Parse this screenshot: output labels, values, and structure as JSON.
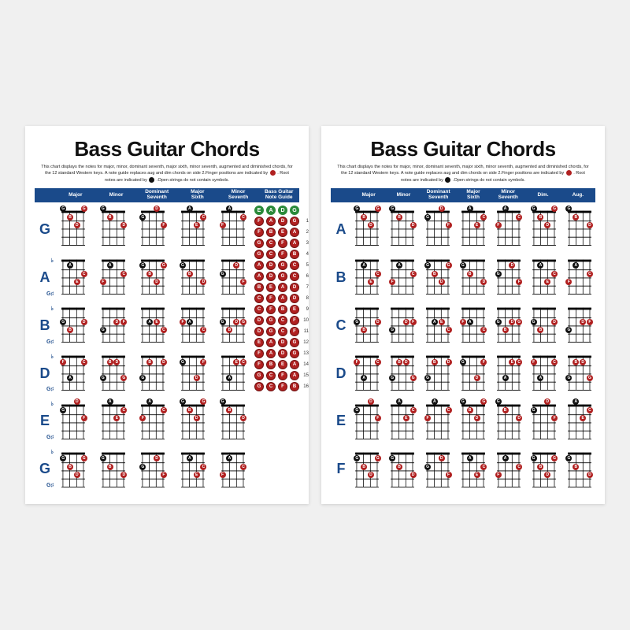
{
  "title": "Bass Guitar Chords",
  "subtitle_prefix": "This chart displays the notes for major, minor, dominant seventh, major sixth, minor seventh, augmented and diminished chords, for the 12 standard Western keys. A note guide replaces aug and dim chords on side 2.Finger positions are indicated by ",
  "subtitle_mid": " . Root notes are indicated by ",
  "subtitle_suffix": " .Open strings do not contain symbols.",
  "colors": {
    "header_bg": "#1a4a8a",
    "label": "#1a4a8a",
    "finger": "#b02020",
    "root": "#111111",
    "open": "#2a8a3a",
    "grid": "#000000"
  },
  "poster_left": {
    "columns": [
      "Major",
      "Minor",
      "Dominant\nSeventh",
      "Major\nSixth",
      "Minor\nSeventh",
      "Bass Guitar\nNote Guide"
    ],
    "rows": [
      {
        "main": "G",
        "flat": "",
        "sharp": ""
      },
      {
        "main": "A",
        "flat": "♭",
        "sharp": "G♯"
      },
      {
        "main": "B",
        "flat": "♭",
        "sharp": "G♯"
      },
      {
        "main": "D",
        "flat": "♭",
        "sharp": "G♯"
      },
      {
        "main": "E",
        "flat": "♭",
        "sharp": "G♯"
      },
      {
        "main": "G",
        "flat": "♭",
        "sharp": "G♯"
      }
    ],
    "note_guide": true
  },
  "poster_right": {
    "columns": [
      "Major",
      "Minor",
      "Dominant\nSeventh",
      "Major\nSixth",
      "Minor\nSeventh",
      "Dim.",
      "Aug."
    ],
    "rows": [
      {
        "main": "A",
        "flat": "",
        "sharp": ""
      },
      {
        "main": "B",
        "flat": "",
        "sharp": ""
      },
      {
        "main": "C",
        "flat": "",
        "sharp": ""
      },
      {
        "main": "D",
        "flat": "",
        "sharp": ""
      },
      {
        "main": "E",
        "flat": "",
        "sharp": ""
      },
      {
        "main": "F",
        "flat": "",
        "sharp": ""
      }
    ],
    "note_guide": false
  },
  "open_strings": [
    "E",
    "A",
    "D",
    "G"
  ],
  "fretboard_notes": [
    [
      "F",
      "A",
      "D",
      "G"
    ],
    [
      "F",
      "B",
      "E",
      "A"
    ],
    [
      "G",
      "C",
      "F",
      "A"
    ],
    [
      "G",
      "C",
      "F",
      "B"
    ],
    [
      "A",
      "D",
      "G",
      "C"
    ],
    [
      "A",
      "D",
      "G",
      "C"
    ],
    [
      "B",
      "E",
      "A",
      "D"
    ],
    [
      "C",
      "F",
      "A",
      "D"
    ],
    [
      "C",
      "F",
      "B",
      "E"
    ],
    [
      "D",
      "G",
      "C",
      "F"
    ],
    [
      "D",
      "G",
      "C",
      "F"
    ],
    [
      "E",
      "A",
      "D",
      "G"
    ],
    [
      "F",
      "A",
      "D",
      "G"
    ],
    [
      "F",
      "B",
      "E",
      "A"
    ],
    [
      "G",
      "C",
      "F",
      "A"
    ],
    [
      "G",
      "C",
      "F",
      "B"
    ]
  ],
  "chord_markers_seed": [
    [
      {
        "s": 0,
        "f": 0,
        "t": "r",
        "l": "G"
      },
      {
        "s": 1,
        "f": 1,
        "t": "f",
        "l": "B"
      },
      {
        "s": 2,
        "f": 2,
        "t": "f",
        "l": "D"
      },
      {
        "s": 3,
        "f": 0,
        "t": "f",
        "l": "G"
      }
    ],
    [
      {
        "s": 0,
        "f": 0,
        "t": "r",
        "l": "G"
      },
      {
        "s": 1,
        "f": 1,
        "t": "f",
        "l": "B"
      },
      {
        "s": 3,
        "f": 2,
        "t": "f",
        "l": "D"
      }
    ],
    [
      {
        "s": 0,
        "f": 1,
        "t": "r",
        "l": "G"
      },
      {
        "s": 2,
        "f": 0,
        "t": "f",
        "l": "D"
      },
      {
        "s": 3,
        "f": 2,
        "t": "f",
        "l": "F"
      }
    ],
    [
      {
        "s": 1,
        "f": 0,
        "t": "r",
        "l": "A"
      },
      {
        "s": 2,
        "f": 2,
        "t": "f",
        "l": "E"
      },
      {
        "s": 3,
        "f": 1,
        "t": "f",
        "l": "C"
      }
    ],
    [
      {
        "s": 0,
        "f": 2,
        "t": "f",
        "l": "F"
      },
      {
        "s": 1,
        "f": 0,
        "t": "r",
        "l": "A"
      },
      {
        "s": 3,
        "f": 1,
        "t": "f",
        "l": "C"
      }
    ]
  ]
}
